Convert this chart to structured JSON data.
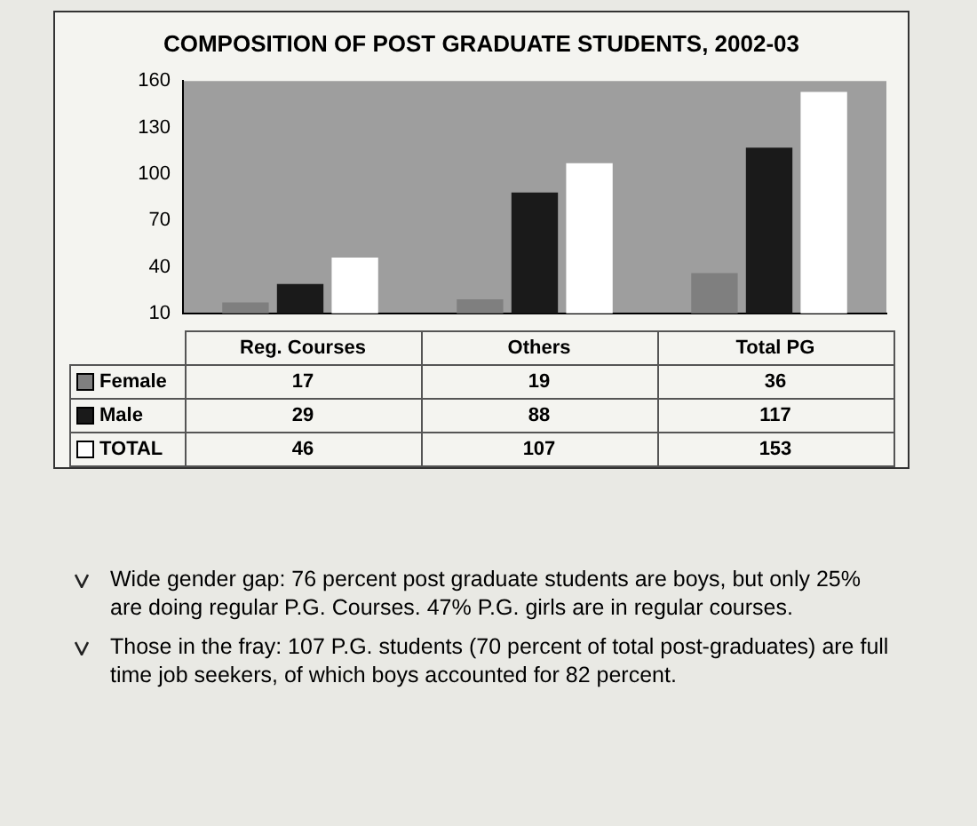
{
  "chart_data": {
    "type": "bar",
    "title": "COMPOSITION OF POST GRADUATE STUDENTS, 2002-03",
    "categories": [
      "Reg. Courses",
      "Others",
      "Total PG"
    ],
    "series": [
      {
        "name": "Female",
        "color": "#7f7f7f",
        "values": [
          17,
          19,
          36
        ]
      },
      {
        "name": "Male",
        "color": "#1a1a1a",
        "values": [
          29,
          88,
          117
        ]
      },
      {
        "name": "TOTAL",
        "color": "#ffffff",
        "values": [
          46,
          107,
          153
        ]
      }
    ],
    "ylim": [
      10,
      160
    ],
    "yticks": [
      10,
      40,
      70,
      100,
      130,
      160
    ],
    "grid": false,
    "legend": "bottom",
    "data_labels": true,
    "annotations": [
      "Wide gender gap: 76 percent post graduate students are boys, but only 25% are doing regular P.G. Courses. 47% P.G. girls are in regular courses.",
      "Those in the fray: 107 P.G. students (70 percent of total post-graduates) are full time job seekers, of which boys accounted for 82 percent."
    ]
  }
}
